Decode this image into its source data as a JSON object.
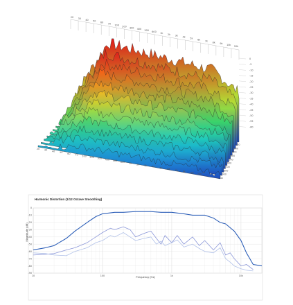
{
  "chart_data": [
    {
      "type": "area",
      "subtype": "waterfall-3d",
      "title": "",
      "x_tick_labels_back": [
        "20",
        "30",
        "40",
        "50",
        "60",
        "70",
        "100",
        "200",
        "300",
        "400",
        "500",
        "600",
        "1k",
        "2k",
        "3k",
        "4k",
        "5k",
        "6k",
        "7k",
        "8k",
        "9k",
        "10k",
        "20k"
      ],
      "x_tick_labels_front": [
        "20",
        "30",
        "40",
        "50",
        "60",
        "70",
        "100",
        "200",
        "300",
        "400",
        "500",
        "600",
        "1k",
        "2k",
        "3k",
        "4k",
        "5k",
        "6k",
        "7k",
        "8k",
        "10k",
        "20k"
      ],
      "depth_tick_labels": [
        "100",
        "200",
        "300",
        "400",
        "500",
        "600",
        "700",
        "800",
        "900",
        "1k"
      ],
      "z_tick_labels": [
        "0",
        "-5",
        "-10",
        "-15",
        "-20",
        "-25",
        "-30",
        "-35",
        "-40",
        "-45",
        "-50",
        "-55",
        "-60"
      ],
      "xlim_hz": [
        20,
        20000
      ],
      "zlim_db": [
        -60,
        0
      ],
      "slices": 12,
      "colormap": [
        "#1f3fb8",
        "#1e90d8",
        "#1cc9c4",
        "#39d36a",
        "#c8de2a",
        "#ffb21c",
        "#ff5a12",
        "#e2161a"
      ]
    },
    {
      "type": "line",
      "title": "Harmonic Distortion (1/12 Octave Smoothing)",
      "xlabel": "Frequency (Hz)",
      "ylabel": "Magnitude (dB)",
      "x_scale": "log",
      "xlim": [
        10,
        20000
      ],
      "ylim": [
        -90,
        0
      ],
      "x_ticks": [
        10,
        100,
        1000,
        10000
      ],
      "x_tick_labels": [
        "10",
        "100",
        "1k",
        "10k"
      ],
      "y_ticks": [
        -90,
        -80,
        -70,
        -60,
        -50,
        -40,
        -30,
        -20,
        -10,
        0
      ],
      "y_tick_labels": [
        "-90",
        "-80",
        "-70",
        "-60",
        "-50",
        "-40",
        "-30",
        "-20",
        "-10",
        "0"
      ],
      "grid": true,
      "legend": "none",
      "series": [
        {
          "color": "#2d5fb8",
          "x": [
            10,
            15,
            20,
            30,
            40,
            60,
            80,
            100,
            150,
            200,
            300,
            500,
            700,
            1000,
            1500,
            2000,
            3000,
            4000,
            5000,
            6000,
            8000,
            10000,
            12000,
            15000,
            20000
          ],
          "values": [
            -58,
            -55,
            -52,
            -42,
            -32,
            -20,
            -12,
            -8,
            -6,
            -6,
            -5,
            -5,
            -6,
            -6,
            -8,
            -10,
            -10,
            -14,
            -20,
            -22,
            -32,
            -45,
            -62,
            -78,
            -80
          ]
        },
        {
          "color": "#8a96d8",
          "x": [
            10,
            15,
            20,
            30,
            40,
            60,
            80,
            100,
            130,
            150,
            200,
            250,
            300,
            400,
            500,
            600,
            700,
            800,
            1000,
            1200,
            1500,
            2000,
            2500,
            3000,
            4000,
            5000,
            6000,
            7000,
            8000,
            10000,
            12000,
            15000
          ],
          "values": [
            -65,
            -64,
            -63,
            -58,
            -55,
            -48,
            -40,
            -34,
            -28,
            -30,
            -26,
            -30,
            -40,
            -35,
            -32,
            -42,
            -50,
            -38,
            -48,
            -38,
            -50,
            -40,
            -52,
            -45,
            -58,
            -48,
            -65,
            -62,
            -70,
            -80,
            -78,
            -85
          ]
        },
        {
          "color": "#b0c0e8",
          "x": [
            10,
            15,
            20,
            30,
            40,
            60,
            80,
            100,
            130,
            150,
            200,
            250,
            300,
            400,
            500,
            600,
            700,
            800,
            1000,
            1200,
            1500,
            2000,
            2500,
            3000,
            4000,
            5000,
            6000,
            7000,
            8000,
            10000,
            12000,
            15000
          ],
          "values": [
            -62,
            -63,
            -65,
            -66,
            -60,
            -55,
            -48,
            -45,
            -38,
            -40,
            -34,
            -40,
            -45,
            -42,
            -40,
            -50,
            -46,
            -52,
            -48,
            -44,
            -54,
            -50,
            -56,
            -60,
            -62,
            -55,
            -70,
            -75,
            -80,
            -84,
            -86,
            -87
          ]
        }
      ]
    }
  ]
}
